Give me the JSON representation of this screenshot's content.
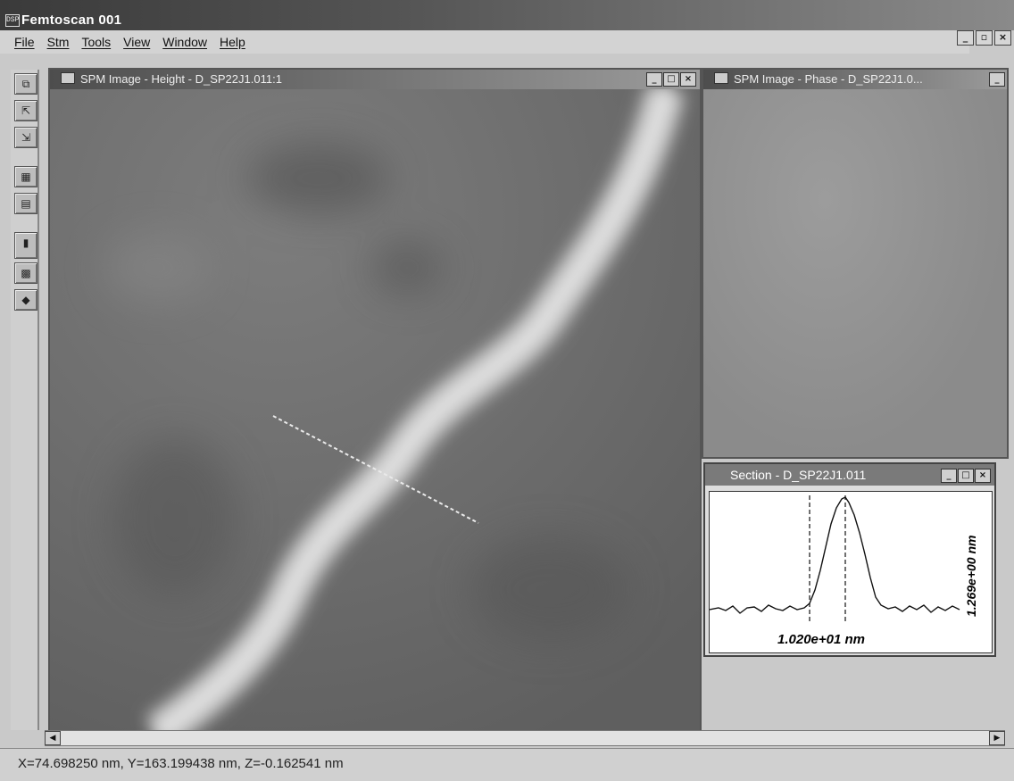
{
  "app": {
    "logo": "DSP",
    "title": "Femtoscan 001",
    "controls": [
      "_",
      "▫",
      "×"
    ]
  },
  "menu": [
    "File",
    "Stm",
    "Tools",
    "View",
    "Window",
    "Help"
  ],
  "toolbar": {
    "icons": [
      "copy-icon",
      "export-icon",
      "import-icon",
      "scan-icon",
      "filter-icon",
      "save-icon",
      "grid-icon",
      "shield-icon"
    ]
  },
  "height_window": {
    "title": "SPM Image - Height - D_SP22J1.011:1",
    "controls": [
      "_",
      "□",
      "×"
    ]
  },
  "phase_window": {
    "title": "SPM Image - Phase - D_SP22J1.0...",
    "controls": [
      "_"
    ]
  },
  "section_window": {
    "title": "Section - D_SP22J1.011",
    "controls": [
      "_",
      "□",
      "×"
    ],
    "x_label": "1.020e+01 nm",
    "y_label": "1.269e+00 nm"
  },
  "status": {
    "text": "X=74.698250 nm, Y=163.199438 nm, Z=-0.162541 nm"
  }
}
